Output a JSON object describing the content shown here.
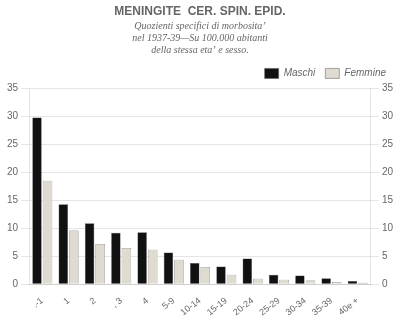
{
  "chart_data": {
    "type": "bar",
    "title": "MENINGITE  CER. SPIN. EPID.",
    "subtitle": [
      "Quozienti specifici di morbositaʼ",
      "nel 1937-39—Su 100.000 abitanti",
      "della stessa etaʼ e sesso."
    ],
    "categories": [
      ".-1",
      "1",
      "2",
      ", 3",
      "4",
      "5-9",
      "10-14",
      "15-19",
      "20-24",
      "25-29",
      "30-34",
      "35-39",
      "40e +"
    ],
    "series": [
      {
        "name": "Maschi",
        "color": "#111111",
        "values": [
          29.8,
          14.3,
          10.9,
          9.2,
          9.3,
          5.7,
          3.8,
          3.2,
          4.6,
          1.7,
          1.6,
          1.1,
          0.6
        ]
      },
      {
        "name": "Femmine",
        "color": "#e0dbd0",
        "values": [
          18.5,
          9.6,
          7.2,
          6.5,
          6.2,
          4.4,
          3.1,
          1.7,
          1.0,
          0.8,
          0.7,
          0.4,
          0.3
        ]
      }
    ],
    "ylim": [
      0,
      35
    ],
    "yticks": [
      0,
      5,
      10,
      15,
      20,
      25,
      30,
      35
    ],
    "y2lim": [
      0,
      35
    ],
    "y2ticks": [
      0,
      5,
      10,
      15,
      20,
      25,
      30,
      35
    ],
    "grid": true,
    "legend": "upper right"
  }
}
